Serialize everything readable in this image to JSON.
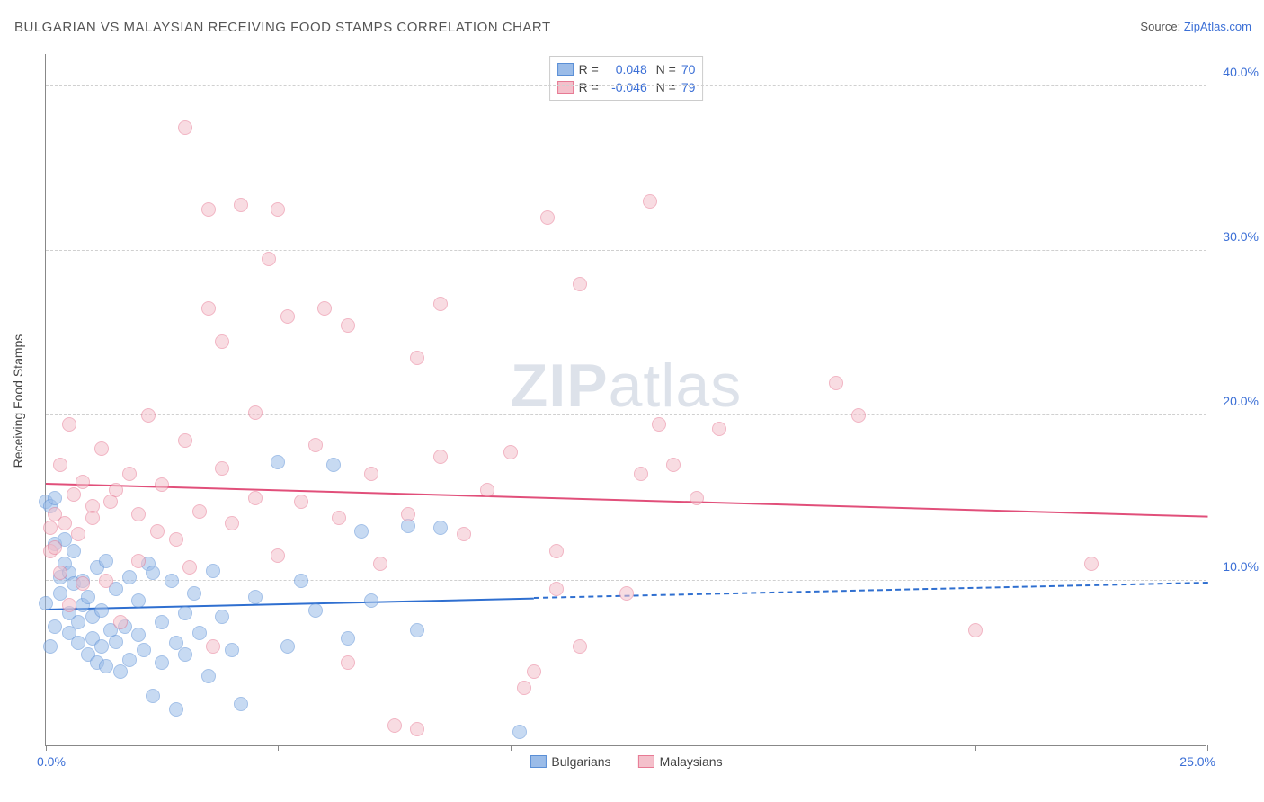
{
  "title": "BULGARIAN VS MALAYSIAN RECEIVING FOOD STAMPS CORRELATION CHART",
  "source_label": "Source:",
  "source_name": "ZipAtlas.com",
  "watermark": {
    "bold": "ZIP",
    "rest": "atlas"
  },
  "axis": {
    "y_title": "Receiving Food Stamps",
    "x_min_label": "0.0%",
    "x_max_label": "25.0%"
  },
  "chart": {
    "type": "scatter",
    "xlim": [
      0,
      25
    ],
    "ylim": [
      0,
      42
    ],
    "x_ticks": [
      0,
      5,
      10,
      15,
      20,
      25
    ],
    "y_grid": [
      10,
      20,
      30,
      40
    ],
    "y_labels": [
      "10.0%",
      "20.0%",
      "30.0%",
      "40.0%"
    ],
    "background_color": "#ffffff",
    "grid_color": "#d0d0d0",
    "axis_color": "#888888",
    "tick_label_color": "#3b6fd6",
    "point_radius": 8,
    "point_opacity": 0.55,
    "point_border_width": 1
  },
  "series": [
    {
      "name": "Bulgarians",
      "fill": "#9bbce8",
      "stroke": "#5a8fd6",
      "trend": {
        "y_start": 8.2,
        "y_end": 9.8,
        "solid_until_x": 10.5,
        "color": "#2f6fd0",
        "width": 2
      },
      "corr": {
        "R": "0.048",
        "N": "70"
      },
      "points": [
        [
          0.0,
          8.6
        ],
        [
          0.0,
          14.8
        ],
        [
          0.1,
          6.0
        ],
        [
          0.1,
          14.5
        ],
        [
          0.2,
          15.0
        ],
        [
          0.2,
          12.2
        ],
        [
          0.2,
          7.2
        ],
        [
          0.3,
          10.2
        ],
        [
          0.3,
          9.2
        ],
        [
          0.4,
          11.0
        ],
        [
          0.4,
          12.5
        ],
        [
          0.5,
          10.5
        ],
        [
          0.5,
          8.0
        ],
        [
          0.5,
          6.8
        ],
        [
          0.6,
          11.8
        ],
        [
          0.6,
          9.8
        ],
        [
          0.7,
          7.5
        ],
        [
          0.7,
          6.2
        ],
        [
          0.8,
          10.0
        ],
        [
          0.8,
          8.5
        ],
        [
          0.9,
          9.0
        ],
        [
          0.9,
          5.5
        ],
        [
          1.0,
          6.5
        ],
        [
          1.0,
          7.8
        ],
        [
          1.1,
          10.8
        ],
        [
          1.1,
          5.0
        ],
        [
          1.2,
          8.2
        ],
        [
          1.2,
          6.0
        ],
        [
          1.3,
          11.2
        ],
        [
          1.3,
          4.8
        ],
        [
          1.4,
          7.0
        ],
        [
          1.5,
          9.5
        ],
        [
          1.5,
          6.3
        ],
        [
          1.6,
          4.5
        ],
        [
          1.7,
          7.2
        ],
        [
          1.8,
          10.2
        ],
        [
          1.8,
          5.2
        ],
        [
          2.0,
          8.8
        ],
        [
          2.0,
          6.7
        ],
        [
          2.1,
          5.8
        ],
        [
          2.2,
          11.0
        ],
        [
          2.3,
          3.0
        ],
        [
          2.3,
          10.5
        ],
        [
          2.5,
          7.5
        ],
        [
          2.5,
          5.0
        ],
        [
          2.7,
          10.0
        ],
        [
          2.8,
          6.2
        ],
        [
          2.8,
          2.2
        ],
        [
          3.0,
          8.0
        ],
        [
          3.0,
          5.5
        ],
        [
          3.2,
          9.2
        ],
        [
          3.3,
          6.8
        ],
        [
          3.5,
          4.2
        ],
        [
          3.6,
          10.6
        ],
        [
          3.8,
          7.8
        ],
        [
          4.0,
          5.8
        ],
        [
          4.2,
          2.5
        ],
        [
          4.5,
          9.0
        ],
        [
          5.0,
          17.2
        ],
        [
          5.2,
          6.0
        ],
        [
          5.5,
          10.0
        ],
        [
          5.8,
          8.2
        ],
        [
          6.2,
          17.0
        ],
        [
          6.5,
          6.5
        ],
        [
          6.8,
          13.0
        ],
        [
          7.0,
          8.8
        ],
        [
          7.8,
          13.3
        ],
        [
          8.0,
          7.0
        ],
        [
          8.5,
          13.2
        ],
        [
          10.2,
          0.8
        ]
      ]
    },
    {
      "name": "Malaysians",
      "fill": "#f4c0cb",
      "stroke": "#e77a94",
      "trend": {
        "y_start": 15.8,
        "y_end": 13.8,
        "solid_until_x": 25,
        "color": "#e14f7a",
        "width": 2
      },
      "corr": {
        "R": "-0.046",
        "N": "79"
      },
      "points": [
        [
          0.1,
          13.2
        ],
        [
          0.1,
          11.8
        ],
        [
          0.2,
          12.0
        ],
        [
          0.2,
          14.0
        ],
        [
          0.3,
          17.0
        ],
        [
          0.3,
          10.5
        ],
        [
          0.4,
          13.5
        ],
        [
          0.5,
          19.5
        ],
        [
          0.5,
          8.5
        ],
        [
          0.6,
          15.2
        ],
        [
          0.7,
          12.8
        ],
        [
          0.8,
          16.0
        ],
        [
          0.8,
          9.8
        ],
        [
          1.0,
          14.5
        ],
        [
          1.0,
          13.8
        ],
        [
          1.2,
          18.0
        ],
        [
          1.3,
          10.0
        ],
        [
          1.4,
          14.8
        ],
        [
          1.5,
          15.5
        ],
        [
          1.6,
          7.5
        ],
        [
          1.8,
          16.5
        ],
        [
          2.0,
          14.0
        ],
        [
          2.0,
          11.2
        ],
        [
          2.2,
          20.0
        ],
        [
          2.4,
          13.0
        ],
        [
          2.5,
          15.8
        ],
        [
          2.8,
          12.5
        ],
        [
          3.0,
          37.5
        ],
        [
          3.0,
          18.5
        ],
        [
          3.1,
          10.8
        ],
        [
          3.3,
          14.2
        ],
        [
          3.5,
          32.5
        ],
        [
          3.5,
          26.5
        ],
        [
          3.6,
          6.0
        ],
        [
          3.8,
          16.8
        ],
        [
          3.8,
          24.5
        ],
        [
          4.0,
          13.5
        ],
        [
          4.2,
          32.8
        ],
        [
          4.5,
          15.0
        ],
        [
          4.5,
          20.2
        ],
        [
          4.8,
          29.5
        ],
        [
          5.0,
          32.5
        ],
        [
          5.0,
          11.5
        ],
        [
          5.2,
          26.0
        ],
        [
          5.5,
          14.8
        ],
        [
          5.8,
          18.2
        ],
        [
          6.0,
          26.5
        ],
        [
          6.3,
          13.8
        ],
        [
          6.5,
          25.5
        ],
        [
          6.5,
          5.0
        ],
        [
          7.0,
          16.5
        ],
        [
          7.2,
          11.0
        ],
        [
          7.5,
          1.2
        ],
        [
          7.8,
          14.0
        ],
        [
          8.0,
          1.0
        ],
        [
          8.0,
          23.5
        ],
        [
          8.5,
          17.5
        ],
        [
          8.5,
          26.8
        ],
        [
          9.0,
          12.8
        ],
        [
          9.5,
          15.5
        ],
        [
          10.0,
          17.8
        ],
        [
          10.3,
          3.5
        ],
        [
          10.5,
          4.5
        ],
        [
          10.8,
          32.0
        ],
        [
          11.0,
          9.5
        ],
        [
          11.0,
          11.8
        ],
        [
          11.5,
          28.0
        ],
        [
          11.5,
          6.0
        ],
        [
          12.5,
          9.2
        ],
        [
          12.8,
          16.5
        ],
        [
          13.0,
          33.0
        ],
        [
          13.2,
          19.5
        ],
        [
          13.5,
          17.0
        ],
        [
          14.0,
          15.0
        ],
        [
          14.5,
          19.2
        ],
        [
          17.0,
          22.0
        ],
        [
          17.5,
          20.0
        ],
        [
          20.0,
          7.0
        ],
        [
          22.5,
          11.0
        ]
      ]
    }
  ],
  "bottom_legend": [
    {
      "label": "Bulgarians",
      "fill": "#9bbce8",
      "stroke": "#5a8fd6"
    },
    {
      "label": "Malaysians",
      "fill": "#f4c0cb",
      "stroke": "#e77a94"
    }
  ]
}
